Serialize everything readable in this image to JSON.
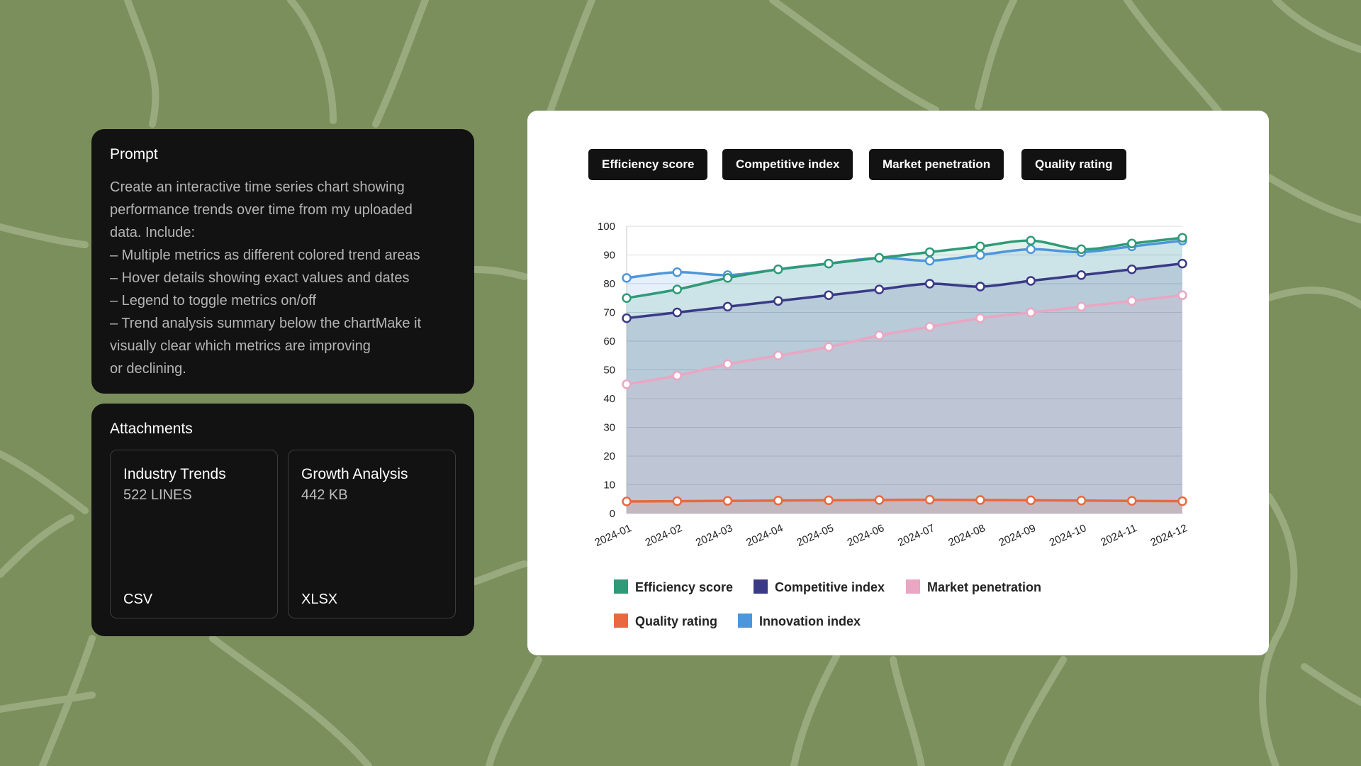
{
  "prompt": {
    "title": "Prompt",
    "lines": [
      "Create an interactive time series chart showing",
      "performance trends over time from my uploaded",
      "data. Include:",
      "– Multiple metrics as different colored trend areas",
      "– Hover details showing exact values and dates",
      "– Legend to toggle metrics on/off",
      "– Trend analysis summary below the chartMake it",
      "visually clear which metrics are improving",
      "or declining."
    ]
  },
  "attachments": {
    "title": "Attachments",
    "files": [
      {
        "name": "Industry Trends",
        "meta": "522 LINES",
        "type": "CSV"
      },
      {
        "name": "Growth Analysis",
        "meta": "442 KB",
        "type": "XLSX"
      }
    ]
  },
  "chips": [
    "Efficiency score",
    "Competitive index",
    "Market penetration",
    "Quality rating"
  ],
  "chart_data": {
    "type": "area",
    "x": [
      "2024-01",
      "2024-02",
      "2024-03",
      "2024-04",
      "2024-05",
      "2024-06",
      "2024-07",
      "2024-08",
      "2024-09",
      "2024-10",
      "2024-11",
      "2024-12"
    ],
    "ylim": [
      0,
      100
    ],
    "yticks": [
      0,
      10,
      20,
      30,
      40,
      50,
      60,
      70,
      80,
      90,
      100
    ],
    "grid": true,
    "legend_position": "bottom-left",
    "series": [
      {
        "name": "Efficiency score",
        "color": "#2f9a78",
        "values": [
          75,
          78,
          82,
          85,
          87,
          89,
          91,
          93,
          95,
          92,
          94,
          96
        ]
      },
      {
        "name": "Competitive index",
        "color": "#3a3a86",
        "values": [
          68,
          70,
          72,
          74,
          76,
          78,
          80,
          79,
          81,
          83,
          85,
          87
        ]
      },
      {
        "name": "Market penetration",
        "color": "#eaa6c2",
        "values": [
          45,
          48,
          52,
          55,
          58,
          62,
          65,
          68,
          70,
          72,
          74,
          76
        ]
      },
      {
        "name": "Quality rating",
        "color": "#e8693f",
        "values": [
          4.2,
          4.3,
          4.4,
          4.5,
          4.6,
          4.7,
          4.8,
          4.7,
          4.6,
          4.5,
          4.4,
          4.3
        ]
      },
      {
        "name": "Innovation index",
        "color": "#4d96db",
        "values": [
          82,
          84,
          83,
          85,
          87,
          89,
          88,
          90,
          92,
          91,
          93,
          95
        ]
      }
    ]
  }
}
